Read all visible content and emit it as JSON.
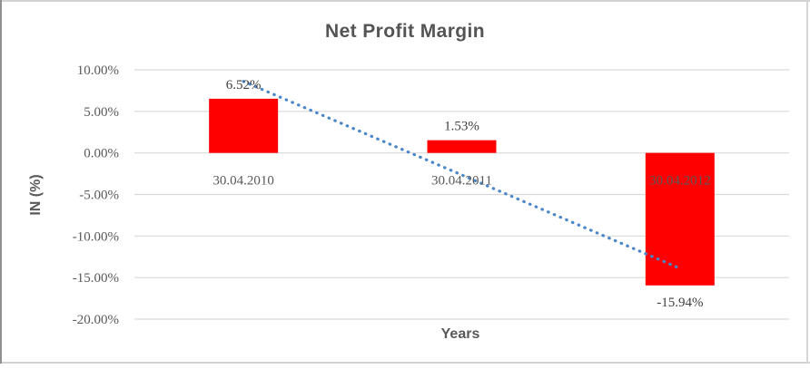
{
  "chart_data": {
    "type": "bar",
    "title": "Net Profit Margin",
    "xlabel": "Years",
    "ylabel": "IN (%)",
    "categories": [
      "30.04.2010",
      "30.04.2011",
      "30.04.2012"
    ],
    "values": [
      6.52,
      1.53,
      -15.94
    ],
    "data_labels": [
      "6.52%",
      "1.53%",
      "-15.94%"
    ],
    "y_ticks": [
      10,
      5,
      0,
      -5,
      -10,
      -15,
      -20
    ],
    "y_tick_labels": [
      "10.00%",
      "5.00%",
      "0.00%",
      "-5.00%",
      "-10.00%",
      "-15.00%",
      "-20.00%"
    ],
    "ylim": [
      -20,
      10
    ],
    "grid": true,
    "legend": "none",
    "bar_color": "#ff0000",
    "trendline": {
      "type": "linear",
      "style": "dotted",
      "color": "#4a86c8",
      "start_value": 8.6,
      "end_value": -13.9
    }
  },
  "colors": {
    "title_text": "#545454",
    "axis_text": "#595959",
    "data_label_text": "#3f3f3f",
    "gridline": "#d9d9d9"
  }
}
